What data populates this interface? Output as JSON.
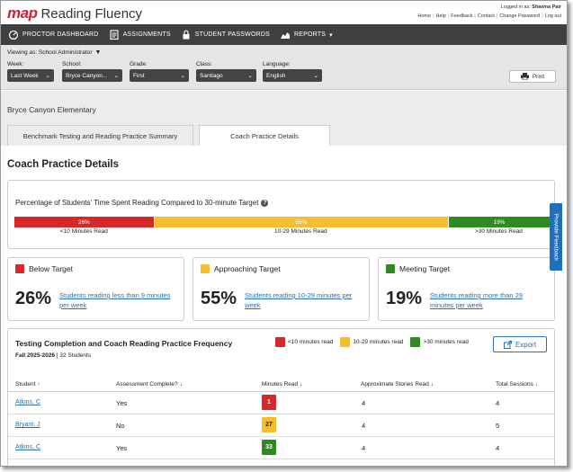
{
  "header": {
    "brand": "map",
    "product": "Reading Fluency",
    "logged_in_as": "Logged in as:",
    "user_name": "Shawna Pair",
    "links": [
      "Home",
      "Help",
      "Feedback",
      "Contact",
      "Change Password",
      "Log out"
    ]
  },
  "nav": {
    "items": [
      {
        "label": "Proctor Dashboard",
        "icon": "dashboard-icon"
      },
      {
        "label": "Assignments",
        "icon": "clipboard-icon"
      },
      {
        "label": "Student Passwords",
        "icon": "lock-icon"
      },
      {
        "label": "Reports",
        "icon": "chart-icon"
      }
    ]
  },
  "filters": {
    "viewing_as": "Viewing as: School Administrator",
    "week": {
      "label": "Week:",
      "value": "Last Week"
    },
    "school": {
      "label": "School:",
      "value": "Bryce Canyon..."
    },
    "grade": {
      "label": "Grade:",
      "value": "First"
    },
    "class": {
      "label": "Class:",
      "value": "Santiago"
    },
    "language": {
      "label": "Language:",
      "value": "English"
    },
    "print_label": "Print"
  },
  "school_name": "Bryce Canyon Elementary",
  "tabs": [
    {
      "label": "Benchmark Testing and Reading Practice Summary",
      "active": false
    },
    {
      "label": "Coach Practice Details",
      "active": true
    }
  ],
  "content": {
    "title": "Coach Practice Details",
    "distribution": {
      "title": "Percentage of Students' Time Spent Reading Compared to 30-minute Target",
      "segments": [
        {
          "percent": 26,
          "label": "26%",
          "caption": "<10 Minutes Read",
          "color": "#d62828"
        },
        {
          "percent": 55,
          "label": "55%",
          "caption": "10-29 Minutes Read",
          "color": "#f5be2e"
        },
        {
          "percent": 19,
          "label": "19%",
          "caption": ">30 Minutes Read",
          "color": "#2e8b1f"
        }
      ]
    },
    "summary_cards": [
      {
        "title": "Below Target",
        "value": "26%",
        "link": "Students reading less than 9 minutes per week",
        "color": "#d62828"
      },
      {
        "title": "Approaching Target",
        "value": "55%",
        "link": "Students reading 10-29 minutes per week",
        "color": "#f5be2e"
      },
      {
        "title": "Meeting Target",
        "value": "19%",
        "link": "Students reading more than 29 minutes per week",
        "color": "#2e8b1f"
      }
    ],
    "table": {
      "title": "Testing Completion and Coach Reading Practice Frequency",
      "term": "Fall 2025-2026",
      "students": "32 Students",
      "legend": [
        {
          "label": "<10 minutes read",
          "color": "#d62828"
        },
        {
          "label": "10-29 minutes read",
          "color": "#f5be2e"
        },
        {
          "label": ">30 minutes read",
          "color": "#2e8b1f"
        }
      ],
      "export_label": "Export",
      "columns": [
        "Student",
        "Assessment Complete?",
        "Minutes Read",
        "Approximate Stories Read",
        "Total Sessions"
      ],
      "rows": [
        {
          "student": "Atkins, C",
          "complete": "Yes",
          "minutes": "1",
          "minutes_color": "#d62828",
          "stories": "4",
          "sessions": "4"
        },
        {
          "student": "Bryant, J",
          "complete": "No",
          "minutes": "27",
          "minutes_color": "#f5be2e",
          "stories": "4",
          "sessions": "5"
        },
        {
          "student": "Atkins, C",
          "complete": "Yes",
          "minutes": "33",
          "minutes_color": "#2e8b1f",
          "stories": "4",
          "sessions": "4"
        }
      ]
    }
  },
  "feedback_tab": "Provide Feedback"
}
